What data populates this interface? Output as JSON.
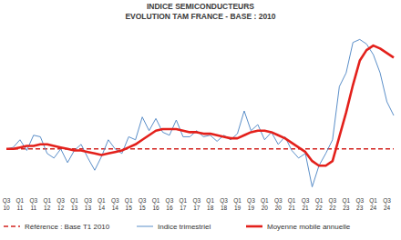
{
  "chart_data": {
    "type": "line",
    "title": "INDICE SEMICONDUCTEURS",
    "subtitle": "EVOLUTION TAM FRANCE - BASE : 2010",
    "categories": [
      "Q3\n10",
      null,
      "Q1\n11",
      null,
      "Q3\n11",
      null,
      "Q1\n12",
      null,
      "Q3\n12",
      null,
      "Q1\n13",
      null,
      "Q3\n13",
      null,
      "Q1\n14",
      null,
      "Q3\n14",
      null,
      "Q1\n15",
      null,
      "Q3\n15",
      null,
      "Q1\n16",
      null,
      "Q3\n16",
      null,
      "Q1\n17",
      null,
      "Q3\n17",
      null,
      "Q1\n18",
      null,
      "Q3\n18",
      null,
      "Q1\n19",
      null,
      "Q3\n19",
      null,
      "Q1\n20",
      null,
      "Q3\n20",
      null,
      "Q1\n21",
      null,
      "Q3\n21",
      null,
      "Q1\n22",
      null,
      "Q3\n22",
      null,
      "Q1\n23",
      null,
      "Q3\n23",
      null,
      "Q1\n24",
      null,
      "Q3\n24",
      null
    ],
    "series": [
      {
        "name": "Référence : Base T1 2010",
        "color": "#d2231f",
        "line_style": "dashed",
        "values": [
          100,
          100,
          100,
          100,
          100,
          100,
          100,
          100,
          100,
          100,
          100,
          100,
          100,
          100,
          100,
          100,
          100,
          100,
          100,
          100,
          100,
          100,
          100,
          100,
          100,
          100,
          100,
          100,
          100,
          100,
          100,
          100,
          100,
          100,
          100,
          100,
          100,
          100,
          100,
          100,
          100,
          100,
          100,
          100,
          100,
          100,
          100,
          100,
          100,
          100,
          100,
          100,
          100,
          100,
          100,
          100,
          100,
          100
        ]
      },
      {
        "name": "Indice trimestriel",
        "color": "#5b8fc9",
        "line_style": "solid",
        "values": [
          100,
          101,
          106,
          99,
          109,
          108,
          97,
          94,
          100,
          91,
          99,
          103,
          94,
          86,
          95,
          106,
          100,
          97,
          108,
          106,
          121,
          112,
          120,
          111,
          109,
          119,
          108,
          108,
          112,
          108,
          109,
          105,
          109,
          106,
          110,
          125,
          112,
          116,
          106,
          111,
          103,
          108,
          99,
          94,
          97,
          75,
          89,
          97,
          106,
          141,
          150,
          170,
          172,
          169,
          162,
          150,
          131,
          122
        ]
      },
      {
        "name": "Moyenne mobile annuelle",
        "color": "#e3201b",
        "line_style": "solid",
        "values": [
          100,
          100,
          101,
          102,
          102,
          103,
          103,
          102,
          101,
          100,
          99,
          99,
          98,
          97,
          96,
          97,
          98,
          99,
          101,
          103,
          106,
          109,
          112,
          113,
          113,
          113,
          112,
          111,
          111,
          110,
          110,
          109,
          108,
          107,
          107,
          109,
          111,
          112,
          112,
          111,
          109,
          107,
          104,
          101,
          98,
          92,
          89,
          89,
          92,
          108,
          124,
          142,
          158,
          165,
          168,
          166,
          163,
          160
        ]
      }
    ],
    "ylim": [
      70,
      180
    ],
    "yticks": [],
    "grid": false,
    "legend": "bottom",
    "tick_labels": "x"
  }
}
